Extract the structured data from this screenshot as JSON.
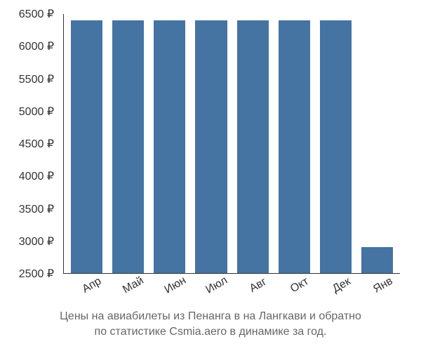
{
  "chart": {
    "type": "bar",
    "categories": [
      "Апр",
      "Май",
      "Июн",
      "Июл",
      "Авг",
      "Окт",
      "Дек",
      "Янв"
    ],
    "values": [
      6400,
      6400,
      6400,
      6400,
      6400,
      6400,
      6400,
      2900
    ],
    "ymin": 2500,
    "ymax": 6500,
    "ytick_step": 500,
    "y_ticks": [
      6500,
      6000,
      5500,
      5000,
      4500,
      4000,
      3500,
      3000,
      2500
    ],
    "currency": "₽",
    "bar_color": "#4573a2",
    "background_color": "#ffffff",
    "axis_color": "#333333",
    "label_fontsize": 16,
    "label_color": "#333333",
    "caption_line1": "Цены на авиабилеты из Пенанга в на Лангкави и обратно",
    "caption_line2": "по статистике Csmia.aero в динамике за год.",
    "caption_color": "#666666",
    "caption_fontsize": 16,
    "bar_gap": 14,
    "x_label_rotation": -30
  }
}
